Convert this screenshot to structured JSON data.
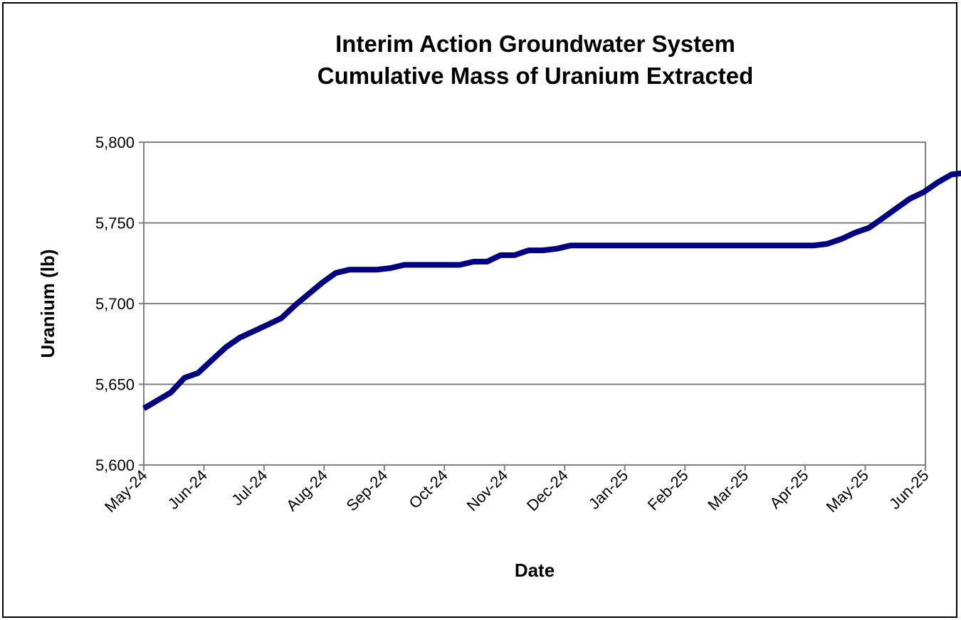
{
  "chart_data": {
    "type": "line",
    "title": [
      "Interim Action Groundwater System",
      "Cumulative Mass of Uranium Extracted"
    ],
    "xlabel": "Date",
    "ylabel": "Uranium (lb)",
    "ylim": [
      5600,
      5800
    ],
    "yticks": [
      5600,
      5650,
      5700,
      5750,
      5800
    ],
    "ytick_labels": [
      "5,600",
      "5,650",
      "5,700",
      "5,750",
      "5,800"
    ],
    "xticks": [
      "May-24",
      "Jun-24",
      "Jul-24",
      "Aug-24",
      "Sep-24",
      "Oct-24",
      "Nov-24",
      "Dec-24",
      "Jan-25",
      "Feb-25",
      "Mar-25",
      "Apr-25",
      "May-25",
      "Jun-25"
    ],
    "grid": "horizontal",
    "line_color": "#000080",
    "series": [
      {
        "x": [
          "2024-05-01",
          "2024-05-08",
          "2024-05-15",
          "2024-05-22",
          "2024-05-29",
          "2024-06-05",
          "2024-06-12",
          "2024-06-19",
          "2024-06-26",
          "2024-07-03",
          "2024-07-10",
          "2024-07-17",
          "2024-07-24",
          "2024-07-31",
          "2024-08-07",
          "2024-08-14",
          "2024-08-21",
          "2024-08-28",
          "2024-09-04",
          "2024-09-11",
          "2024-09-18",
          "2024-09-25",
          "2024-10-02",
          "2024-10-09",
          "2024-10-16",
          "2024-10-23",
          "2024-10-30",
          "2024-11-06",
          "2024-11-13",
          "2024-11-20",
          "2024-11-27",
          "2024-12-04",
          "2024-12-11",
          "2024-12-18",
          "2025-01-15",
          "2025-02-15",
          "2025-03-15",
          "2025-04-05",
          "2025-04-12",
          "2025-04-19",
          "2025-04-26",
          "2025-05-03",
          "2025-05-10",
          "2025-05-17",
          "2025-05-24",
          "2025-05-31",
          "2025-06-07",
          "2025-06-14",
          "2025-06-21",
          "2025-06-28",
          "2025-07-01"
        ],
        "y": [
          5635,
          5640,
          5645,
          5654,
          5657,
          5665,
          5673,
          5679,
          5683,
          5687,
          5691,
          5699,
          5706,
          5713,
          5719,
          5721,
          5721,
          5721,
          5722,
          5724,
          5724,
          5724,
          5724,
          5724,
          5726,
          5726,
          5730,
          5730,
          5733,
          5733,
          5734,
          5736,
          5736,
          5736,
          5736,
          5736,
          5736,
          5736,
          5737,
          5740,
          5744,
          5747,
          5753,
          5759,
          5765,
          5769,
          5775,
          5780,
          5781,
          5783,
          5784
        ]
      }
    ]
  }
}
